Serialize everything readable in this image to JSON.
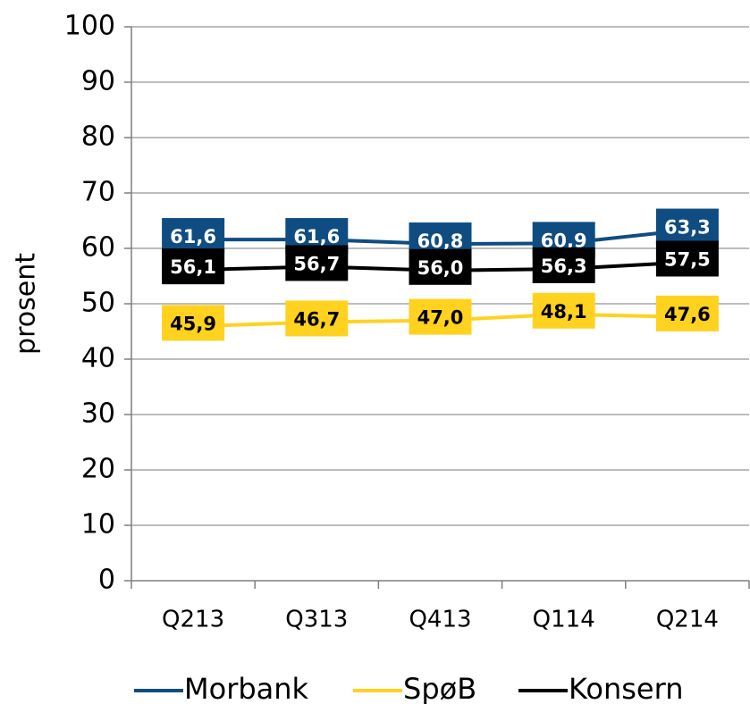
{
  "chart_data": {
    "type": "line",
    "y_label": "prosent",
    "categories": [
      "Q213",
      "Q313",
      "Q413",
      "Q114",
      "Q214"
    ],
    "series": [
      {
        "name": "Morbank",
        "color": "#0f4c81",
        "label_color": "#ffffff",
        "values": [
          61.6,
          61.6,
          60.8,
          60.9,
          63.3
        ],
        "value_labels": [
          "61,6",
          "61,6",
          "60,8",
          "60,9",
          "63,3"
        ]
      },
      {
        "name": "SpøB",
        "color": "#ffd21f",
        "label_color": "#000000",
        "values": [
          45.9,
          46.7,
          47.0,
          48.1,
          47.6
        ],
        "value_labels": [
          "45,9",
          "46,7",
          "47,0",
          "48,1",
          "47,6"
        ]
      },
      {
        "name": "Konsern",
        "color": "#000000",
        "label_color": "#ffffff",
        "values": [
          56.1,
          56.7,
          56.0,
          56.3,
          57.5
        ],
        "value_labels": [
          "56,1",
          "56,7",
          "56,0",
          "56,3",
          "57,5"
        ]
      }
    ],
    "ylim": [
      0,
      100
    ],
    "yticks": [
      0,
      10,
      20,
      30,
      40,
      50,
      60,
      70,
      80,
      90,
      100
    ],
    "grid": true,
    "legend": "bottom"
  }
}
